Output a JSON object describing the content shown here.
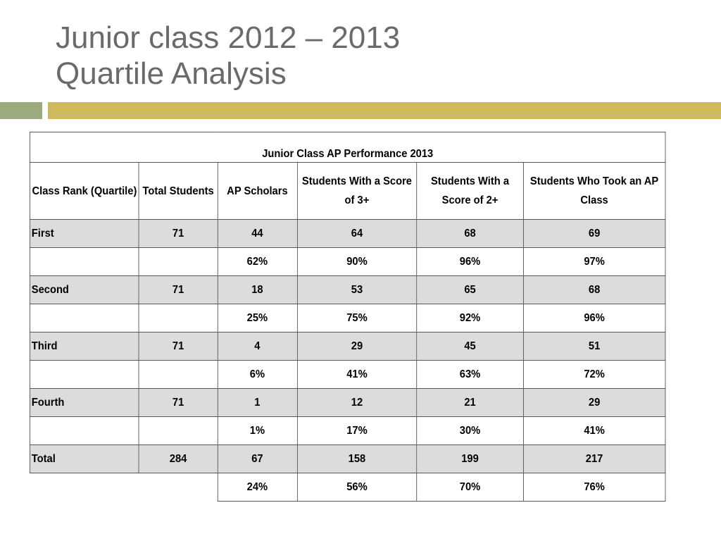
{
  "slide": {
    "title_line1": "Junior class 2012 – 2013",
    "title_line2": "Quartile Analysis"
  },
  "table": {
    "caption": "Junior Class AP Performance 2013",
    "headers": [
      "Class Rank (Quartile)",
      "Total Students",
      "AP Scholars",
      "Students With a Score of 3+",
      "Students With a Score of 2+",
      "Students Who Took an AP Class"
    ],
    "rows": [
      {
        "rank": "First",
        "total": "71",
        "scholars": "44",
        "score3": "64",
        "score2": "68",
        "took": "69",
        "pct": {
          "scholars": "62%",
          "score3": "90%",
          "score2": "96%",
          "took": "97%"
        }
      },
      {
        "rank": "Second",
        "total": "71",
        "scholars": "18",
        "score3": "53",
        "score2": "65",
        "took": "68",
        "pct": {
          "scholars": "25%",
          "score3": "75%",
          "score2": "92%",
          "took": "96%"
        }
      },
      {
        "rank": "Third",
        "total": "71",
        "scholars": "4",
        "score3": "29",
        "score2": "45",
        "took": "51",
        "pct": {
          "scholars": "6%",
          "score3": "41%",
          "score2": "63%",
          "took": "72%"
        }
      },
      {
        "rank": "Fourth",
        "total": "71",
        "scholars": "1",
        "score3": "12",
        "score2": "21",
        "took": "29",
        "pct": {
          "scholars": "1%",
          "score3": "17%",
          "score2": "30%",
          "took": "41%"
        }
      },
      {
        "rank": "Total",
        "total": "284",
        "scholars": "67",
        "score3": "158",
        "score2": "199",
        "took": "217",
        "pct": {
          "scholars": "24%",
          "score3": "56%",
          "score2": "70%",
          "took": "76%"
        }
      }
    ]
  },
  "colors": {
    "title_text": "#6a6a6a",
    "accent_green": "#9bab7d",
    "accent_gold": "#cfb95f",
    "row_shade": "#dcdcdc"
  }
}
